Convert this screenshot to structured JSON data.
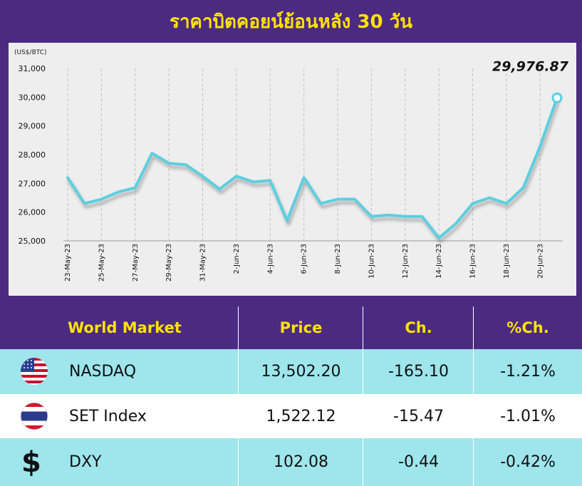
{
  "title": "ราคาบิตคอยน์ย้อนหลัง 30 วัน",
  "chart_data": {
    "type": "line",
    "ylabel": "(US$/BTC)",
    "ylim": [
      25000,
      31000
    ],
    "yticks": [
      "31,000",
      "30,000",
      "29,000",
      "28,000",
      "27,000",
      "26,000",
      "25,000"
    ],
    "yticks_values": [
      31000,
      30000,
      29000,
      28000,
      27000,
      26000,
      25000
    ],
    "x_tick_labels": [
      "23-May-23",
      "25-May-23",
      "27-May-23",
      "29-May-23",
      "31-May-23",
      "2-Jun-23",
      "4-Jun-23",
      "6-Jun-23",
      "8-Jun-23",
      "10-Jun-23",
      "12-Jun-23",
      "14-Jun-23",
      "16-Jun-23",
      "18-Jun-23",
      "20-Jun-23"
    ],
    "series": [
      {
        "values": [
          27200,
          26300,
          26450,
          26700,
          26850,
          28050,
          27700,
          27650,
          27250,
          26800,
          27250,
          27050,
          27100,
          25700,
          27200,
          26300,
          26450,
          26450,
          25850,
          25900,
          25850,
          25850,
          25100,
          25600,
          26300,
          26500,
          26300,
          26850,
          28300,
          29976.87
        ]
      }
    ],
    "end_label": "29,976.87",
    "line_color": "#5ccfe0",
    "grid": "vertical-dashed"
  },
  "table": {
    "headers": [
      "World Market",
      "Price",
      "Ch.",
      "%Ch."
    ],
    "rows": [
      {
        "icon": "us-flag-icon",
        "name": "NASDAQ",
        "price": "13,502.20",
        "ch": "-165.10",
        "pct": "-1.21%"
      },
      {
        "icon": "thai-flag-icon",
        "name": "SET Index",
        "price": "1,522.12",
        "ch": "-15.47",
        "pct": "-1.01%"
      },
      {
        "icon": "dollar-icon",
        "symbol": "$",
        "name": "DXY",
        "price": "102.08",
        "ch": "-0.44",
        "pct": "-0.42%"
      }
    ]
  }
}
